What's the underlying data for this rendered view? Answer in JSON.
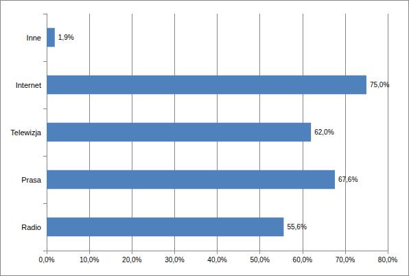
{
  "chart_data": {
    "type": "bar",
    "orientation": "horizontal",
    "categories": [
      "Radio",
      "Prasa",
      "Telewizja",
      "Internet",
      "Inne"
    ],
    "values": [
      55.6,
      67.6,
      62.0,
      75.0,
      1.9
    ],
    "value_labels": [
      "55,6%",
      "67,6%",
      "62,0%",
      "75,0%",
      "1,9%"
    ],
    "color": "#4f81bd",
    "xlim": [
      0,
      80
    ],
    "xticks": [
      {
        "value": 0,
        "label": "0,0%"
      },
      {
        "value": 10,
        "label": "10,0%"
      },
      {
        "value": 20,
        "label": "20,0%"
      },
      {
        "value": 30,
        "label": "30,0%"
      },
      {
        "value": 40,
        "label": "40,0%"
      },
      {
        "value": 50,
        "label": "50,0%"
      },
      {
        "value": 60,
        "label": "60,0%"
      },
      {
        "value": 70,
        "label": "70,0%"
      },
      {
        "value": 80,
        "label": "80,0%"
      }
    ],
    "grid": true,
    "data_labels": true
  }
}
